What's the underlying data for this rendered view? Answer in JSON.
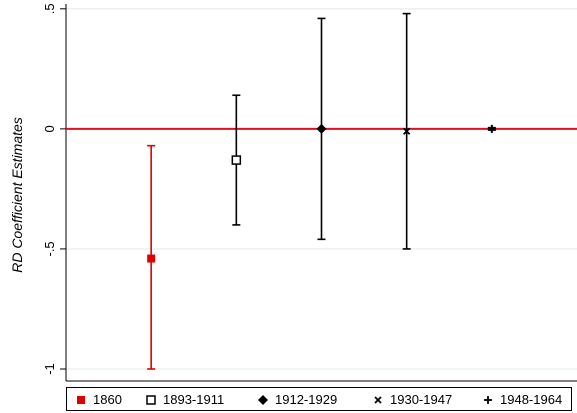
{
  "chart_data": {
    "type": "scatter",
    "title": "",
    "xlabel": "",
    "ylabel": "RD Coefficient Estimates",
    "ylim": [
      -1.05,
      0.52
    ],
    "y_ticks": [
      ".5",
      "0",
      "-.5",
      "-1"
    ],
    "y_tick_values": [
      0.5,
      0,
      -0.5,
      -1
    ],
    "reference_line": {
      "y": 0,
      "color": "#e0101e"
    },
    "grid": true,
    "legend_placement": "bottom",
    "series": [
      {
        "name": "1860",
        "marker": "filled-square",
        "color": "#e00000",
        "estimate": -0.54,
        "ci_low": -1.0,
        "ci_high": -0.07
      },
      {
        "name": "1893-1911",
        "marker": "hollow-square",
        "color": "#000000",
        "estimate": -0.13,
        "ci_low": -0.4,
        "ci_high": 0.14
      },
      {
        "name": "1912-1929",
        "marker": "diamond",
        "color": "#000000",
        "estimate": 0.0,
        "ci_low": -0.46,
        "ci_high": 0.46
      },
      {
        "name": "1930-1947",
        "marker": "x",
        "color": "#000000",
        "estimate": -0.01,
        "ci_low": -0.5,
        "ci_high": 0.48
      },
      {
        "name": "1948-1964",
        "marker": "plus",
        "color": "#000000",
        "estimate": 0.0,
        "ci_low": -0.005,
        "ci_high": 0.005
      }
    ]
  }
}
